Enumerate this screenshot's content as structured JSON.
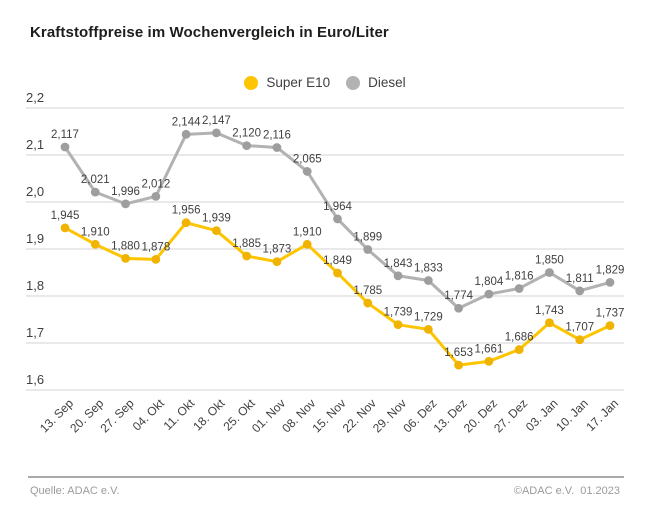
{
  "title": "Kraftstoffpreise im Wochenvergleich in Euro/Liter",
  "legend": {
    "items": [
      {
        "label": "Super E10",
        "color": "#fdc500"
      },
      {
        "label": "Diesel",
        "color": "#b2b2b2"
      }
    ]
  },
  "footer": {
    "source": "Quelle: ADAC e.V.",
    "copyright": "©ADAC e.V.  01.2023"
  },
  "colors": {
    "grid": "#dcdcdc",
    "tick_text": "#3f3f3f",
    "value_label_text": "#3f3f3f"
  },
  "chart_data": {
    "type": "line",
    "title": "Kraftstoffpreise im Wochenvergleich in Euro/Liter",
    "units": "Euro/Liter",
    "categories": [
      "13. Sep",
      "20. Sep",
      "27. Sep",
      "04. Okt",
      "11. Okt",
      "18. Okt",
      "25. Okt",
      "01. Nov",
      "08. Nov",
      "15. Nov",
      "22. Nov",
      "29. Nov",
      "06. Dez",
      "13. Dez",
      "20. Dez",
      "27. Dez",
      "03. Jan",
      "10. Jan",
      "17. Jan"
    ],
    "series": [
      {
        "name": "Super E10",
        "color": "#fdc500",
        "dot_color": "#efb300",
        "values": [
          1.945,
          1.91,
          1.88,
          1.878,
          1.956,
          1.939,
          1.885,
          1.873,
          1.91,
          1.849,
          1.785,
          1.739,
          1.729,
          1.653,
          1.661,
          1.686,
          1.743,
          1.707,
          1.737
        ],
        "labels": [
          "1,945",
          "1,910",
          "1,880",
          "1,878",
          "1,956",
          "1,939",
          "1,885",
          "1,873",
          "1,910",
          "1,849",
          "1,785",
          "1,739",
          "1,729",
          "1,653",
          "1,661",
          "1,686",
          "1,743",
          "1,707",
          "1,737"
        ]
      },
      {
        "name": "Diesel",
        "color": "#b2b2b2",
        "dot_color": "#9e9e9e",
        "values": [
          2.117,
          2.021,
          1.996,
          2.012,
          2.144,
          2.147,
          2.12,
          2.116,
          2.065,
          1.964,
          1.899,
          1.843,
          1.833,
          1.774,
          1.804,
          1.816,
          1.85,
          1.811,
          1.829
        ],
        "labels": [
          "2,117",
          "2,021",
          "1,996",
          "2,012",
          "2,144",
          "2,147",
          "2,120",
          "2,116",
          "2,065",
          "1,964",
          "1,899",
          "1,843",
          "1,833",
          "1,774",
          "1,804",
          "1,816",
          "1,850",
          "1,811",
          "1,829"
        ]
      }
    ],
    "xlabel": "",
    "ylabel": "",
    "ylim": [
      1.6,
      2.2
    ],
    "yticks": [
      2.2,
      2.1,
      2.0,
      1.9,
      1.8,
      1.7,
      1.6
    ],
    "ytick_labels": [
      "2,2",
      "2,1",
      "2,0",
      "1,9",
      "1,8",
      "1,7",
      "1,6"
    ],
    "grid": true,
    "legend_position": "top-center"
  }
}
